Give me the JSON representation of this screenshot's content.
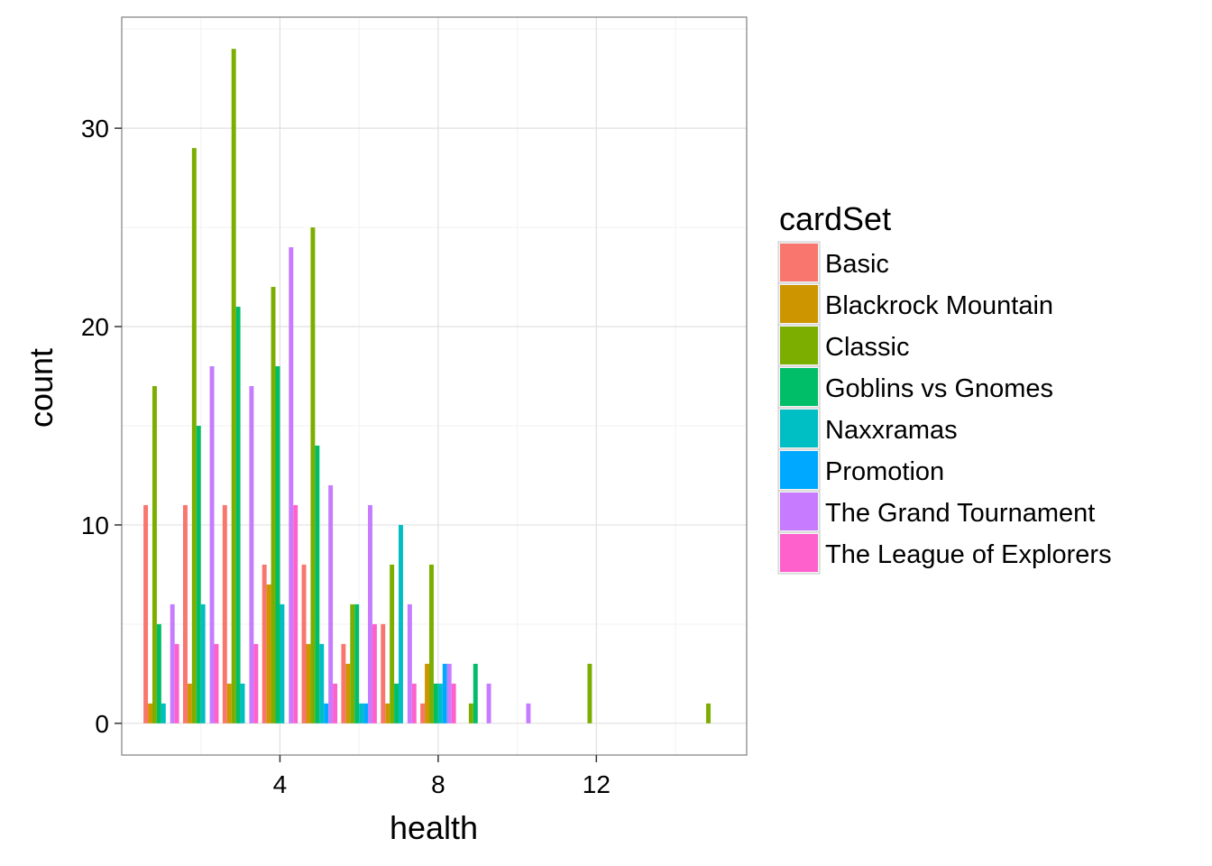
{
  "chart_data": {
    "type": "bar",
    "xlabel": "health",
    "ylabel": "count",
    "xlim": [
      0,
      15.8
    ],
    "ylim": [
      -1.6,
      35.6
    ],
    "x_ticks": [
      4,
      8,
      12
    ],
    "y_ticks": [
      0,
      10,
      20,
      30
    ],
    "grid": true,
    "legend": {
      "title": "cardSet",
      "position": "right"
    },
    "series": [
      {
        "name": "Basic",
        "color": "#F8766D",
        "points": [
          [
            1,
            11
          ],
          [
            2,
            11
          ],
          [
            3,
            11
          ],
          [
            4,
            8
          ],
          [
            5,
            8
          ],
          [
            6,
            4
          ],
          [
            7,
            5
          ],
          [
            8,
            1
          ]
        ]
      },
      {
        "name": "Blackrock Mountain",
        "color": "#CD9600",
        "points": [
          [
            1,
            1
          ],
          [
            2,
            2
          ],
          [
            3,
            2
          ],
          [
            4,
            7
          ],
          [
            5,
            4
          ],
          [
            6,
            3
          ],
          [
            7,
            1
          ],
          [
            8,
            3
          ]
        ]
      },
      {
        "name": "Classic",
        "color": "#7CAE00",
        "points": [
          [
            1,
            17
          ],
          [
            2,
            29
          ],
          [
            3,
            34
          ],
          [
            4,
            22
          ],
          [
            5,
            25
          ],
          [
            6,
            6
          ],
          [
            7,
            8
          ],
          [
            8,
            8
          ],
          [
            9,
            1
          ],
          [
            12,
            3
          ],
          [
            15,
            1
          ]
        ]
      },
      {
        "name": "Goblins vs Gnomes",
        "color": "#00BE67",
        "points": [
          [
            1,
            5
          ],
          [
            2,
            15
          ],
          [
            3,
            21
          ],
          [
            4,
            18
          ],
          [
            5,
            14
          ],
          [
            6,
            6
          ],
          [
            7,
            2
          ],
          [
            8,
            2
          ],
          [
            9,
            3
          ]
        ]
      },
      {
        "name": "Naxxramas",
        "color": "#00BFC4",
        "points": [
          [
            1,
            1
          ],
          [
            2,
            6
          ],
          [
            3,
            2
          ],
          [
            4,
            6
          ],
          [
            5,
            4
          ],
          [
            6,
            1
          ],
          [
            7,
            10
          ],
          [
            8,
            2
          ]
        ]
      },
      {
        "name": "Promotion",
        "color": "#00A9FF",
        "points": [
          [
            5,
            1
          ],
          [
            6,
            1
          ],
          [
            8,
            3
          ]
        ]
      },
      {
        "name": "The Grand Tournament",
        "color": "#C77CFF",
        "points": [
          [
            1,
            6
          ],
          [
            2,
            18
          ],
          [
            3,
            17
          ],
          [
            4,
            24
          ],
          [
            5,
            12
          ],
          [
            6,
            11
          ],
          [
            7,
            6
          ],
          [
            8,
            3
          ],
          [
            9,
            2
          ],
          [
            10,
            1
          ]
        ]
      },
      {
        "name": "The League of Explorers",
        "color": "#FF61CC",
        "points": [
          [
            1,
            4
          ],
          [
            2,
            4
          ],
          [
            3,
            4
          ],
          [
            4,
            11
          ],
          [
            5,
            2
          ],
          [
            6,
            5
          ],
          [
            7,
            2
          ],
          [
            8,
            2
          ]
        ]
      }
    ]
  }
}
